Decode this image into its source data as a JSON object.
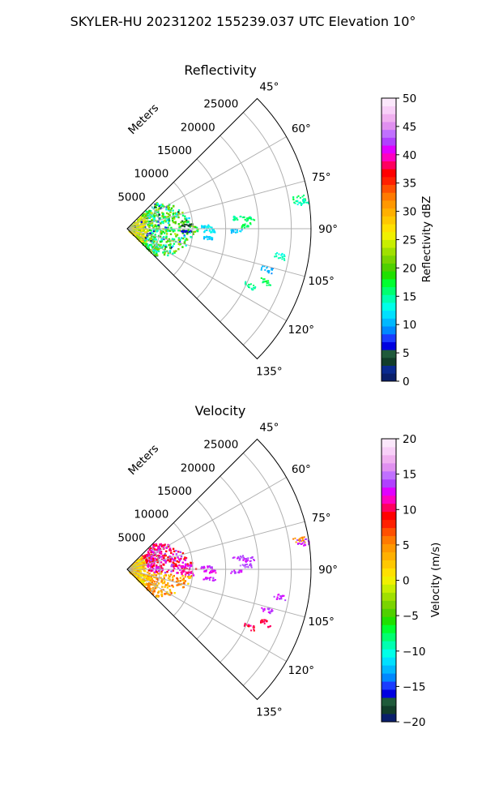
{
  "figure_title": "SKYLER-HU  20231202  155239.037 UTC Elevation 10°",
  "chart_data": [
    {
      "type": "heatmap",
      "title": "Reflectivity",
      "projection": "polar sector",
      "range_axis_label": "Meters",
      "range_ticks": [
        5000,
        10000,
        15000,
        20000,
        25000
      ],
      "range_tick_labels": [
        "5000",
        "10000",
        "15000",
        "20000",
        "25000"
      ],
      "azimuth_range_deg": [
        45,
        135
      ],
      "azimuth_ticks": [
        45,
        60,
        75,
        90,
        105,
        120,
        135
      ],
      "azimuth_tick_labels": [
        "45°",
        "60°",
        "75°",
        "90°",
        "105°",
        "120°",
        "135°"
      ],
      "grid": true,
      "colorbar": {
        "label": "Reflectivity dBZ",
        "min": 0,
        "max": 50,
        "ticks": [
          0,
          5,
          10,
          15,
          20,
          25,
          30,
          35,
          40,
          45,
          50
        ],
        "tick_labels": [
          "0",
          "5",
          "10",
          "15",
          "20",
          "25",
          "30",
          "35",
          "40",
          "45",
          "50"
        ],
        "colors": [
          "#0a1f6b",
          "#0a2a8f",
          "#123d2a",
          "#1f5a3a",
          "#0000e0",
          "#1a3cff",
          "#0088ff",
          "#00b8ff",
          "#00e0ff",
          "#00ffe8",
          "#00ffb0",
          "#00ff70",
          "#00ff30",
          "#20e000",
          "#50d000",
          "#7ad400",
          "#a0e000",
          "#c8ee00",
          "#f0f000",
          "#ffe000",
          "#ffc800",
          "#ffb000",
          "#ff9800",
          "#ff7a00",
          "#ff5000",
          "#ff2000",
          "#ff0000",
          "#ff0060",
          "#ff00c0",
          "#e000ff",
          "#b040ff",
          "#c070ff",
          "#e090f0",
          "#f0b0f0",
          "#f8d0f8",
          "#fbe8fb"
        ]
      },
      "echo_cells": [
        {
          "az": 84,
          "r": 17000,
          "dz": 15
        },
        {
          "az": 85,
          "r": 18500,
          "dz": 16
        },
        {
          "az": 88,
          "r": 18000,
          "dz": 17
        },
        {
          "az": 91,
          "r": 16500,
          "dz": 11
        },
        {
          "az": 80,
          "r": 26500,
          "dz": 16
        },
        {
          "az": 81,
          "r": 27000,
          "dz": 14
        },
        {
          "az": 88,
          "r": 12000,
          "dz": 12
        },
        {
          "az": 91,
          "r": 12500,
          "dz": 12
        },
        {
          "az": 96,
          "r": 12500,
          "dz": 11
        },
        {
          "az": 100,
          "r": 23500,
          "dz": 14
        },
        {
          "az": 106,
          "r": 22000,
          "dz": 10
        },
        {
          "az": 111,
          "r": 22500,
          "dz": 17
        },
        {
          "az": 115,
          "r": 20500,
          "dz": 15
        },
        {
          "az": 92,
          "r": 9000,
          "dz": 6
        },
        {
          "az": 86,
          "r": 9000,
          "dz": 4
        }
      ]
    },
    {
      "type": "heatmap",
      "title": "Velocity",
      "projection": "polar sector",
      "range_axis_label": "Meters",
      "range_ticks": [
        5000,
        10000,
        15000,
        20000,
        25000
      ],
      "range_tick_labels": [
        "5000",
        "10000",
        "15000",
        "20000",
        "25000"
      ],
      "azimuth_range_deg": [
        45,
        135
      ],
      "azimuth_ticks": [
        45,
        60,
        75,
        90,
        105,
        120,
        135
      ],
      "azimuth_tick_labels": [
        "45°",
        "60°",
        "75°",
        "90°",
        "105°",
        "120°",
        "135°"
      ],
      "grid": true,
      "colorbar": {
        "label": "Velocity (m/s)",
        "min": -20,
        "max": 20,
        "ticks": [
          -20,
          -15,
          -10,
          -5,
          0,
          5,
          10,
          15,
          20
        ],
        "tick_labels": [
          "−20",
          "−15",
          "−10",
          "−5",
          "0",
          "5",
          "10",
          "15",
          "20"
        ],
        "colors": [
          "#0a1f6b",
          "#123d2a",
          "#1f5a3a",
          "#0000e0",
          "#1a3cff",
          "#0088ff",
          "#00b8ff",
          "#00e0ff",
          "#00ffe8",
          "#00ffb0",
          "#00ff70",
          "#00ff30",
          "#20e000",
          "#50d000",
          "#7ad400",
          "#a0e000",
          "#c8ee00",
          "#f0f000",
          "#ffe000",
          "#ffc800",
          "#ffb000",
          "#ff9800",
          "#ff7a00",
          "#ff5000",
          "#ff2000",
          "#ff0000",
          "#ff0060",
          "#ff00c0",
          "#e000ff",
          "#b040ff",
          "#c070ff",
          "#e090f0",
          "#f0b0f0",
          "#f8d0f8",
          "#fbe8fb"
        ]
      },
      "echo_cells": [
        {
          "az": 84,
          "r": 17000,
          "v": 14
        },
        {
          "az": 85,
          "r": 18500,
          "v": 13
        },
        {
          "az": 88,
          "r": 18000,
          "v": 14
        },
        {
          "az": 91,
          "r": 16500,
          "v": 13
        },
        {
          "az": 80,
          "r": 26500,
          "v": 5
        },
        {
          "az": 81,
          "r": 27000,
          "v": 13
        },
        {
          "az": 88,
          "r": 12000,
          "v": 13
        },
        {
          "az": 91,
          "r": 12500,
          "v": 12
        },
        {
          "az": 96,
          "r": 12500,
          "v": 13
        },
        {
          "az": 100,
          "r": 23500,
          "v": 13
        },
        {
          "az": 106,
          "r": 22000,
          "v": 13
        },
        {
          "az": 111,
          "r": 22500,
          "v": 10
        },
        {
          "az": 115,
          "r": 20500,
          "v": 10
        },
        {
          "az": 92,
          "r": 9000,
          "v": 11
        },
        {
          "az": 86,
          "r": 9000,
          "v": 12
        }
      ]
    }
  ]
}
